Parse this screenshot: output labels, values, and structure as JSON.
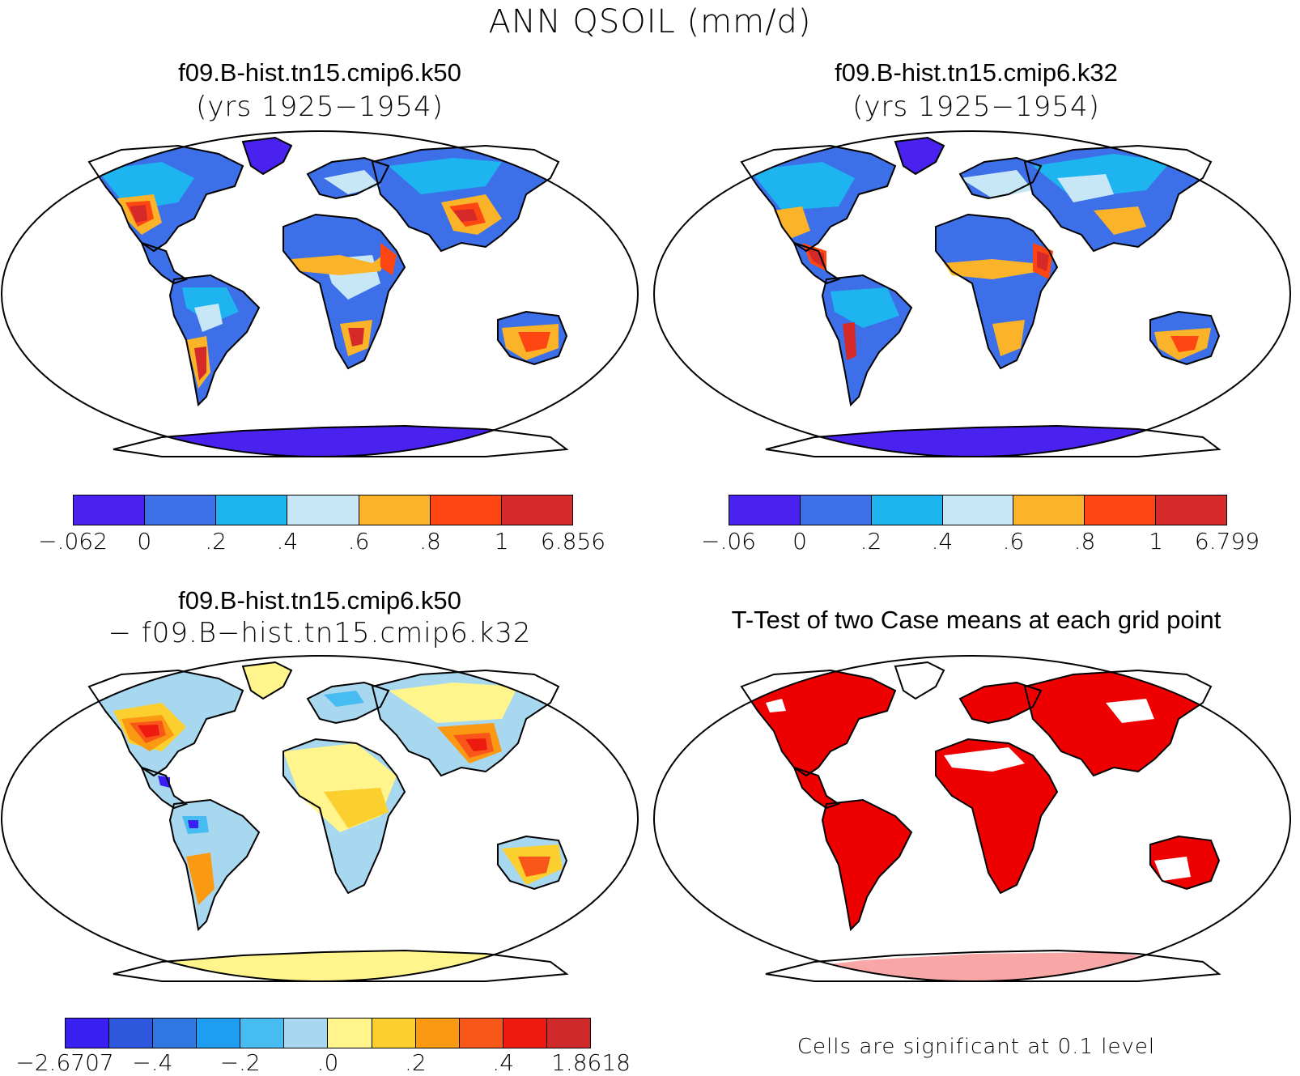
{
  "figure": {
    "title": "ANN QSOIL (mm/d)"
  },
  "panels": [
    {
      "title": "f09.B-hist.tn15.cmip6.k50",
      "subtitle": "(yrs 1925−1954)",
      "colorbar": {
        "colors": [
          "#4a22f0",
          "#3c6fe8",
          "#1db4f0",
          "#c7e7f7",
          "#fbb32a",
          "#fd4612",
          "#d62a2a"
        ],
        "labels": [
          "−.062",
          "0",
          ".2",
          ".4",
          ".6",
          ".8",
          "1",
          "6.856"
        ]
      }
    },
    {
      "title": "f09.B-hist.tn15.cmip6.k32",
      "subtitle": "(yrs 1925−1954)",
      "colorbar": {
        "colors": [
          "#4a22f0",
          "#3c6fe8",
          "#1db4f0",
          "#c7e7f7",
          "#fbb32a",
          "#fd4612",
          "#d62a2a"
        ],
        "labels": [
          "−.06",
          "0",
          ".2",
          ".4",
          ".6",
          ".8",
          "1",
          "6.799"
        ]
      }
    },
    {
      "title": "f09.B-hist.tn15.cmip6.k50",
      "subtitle": "− f09.B−hist.tn15.cmip6.k32",
      "colorbar": {
        "colors": [
          "#3a1ff2",
          "#2d57dc",
          "#2f78e2",
          "#1e9ef0",
          "#46bcf0",
          "#a8d8f0",
          "#fff58c",
          "#fbd02e",
          "#fb9a12",
          "#f9561a",
          "#ee1a10",
          "#d02a2a"
        ],
        "labels": [
          "−2.6707",
          "−.4",
          "−.2",
          ".0",
          ".2",
          ".4",
          "1.8618"
        ]
      }
    },
    {
      "title": "T-Test of two Case means at each grid point",
      "note": "Cells are significant at 0.1 level",
      "significant_color": "#ee0000"
    }
  ]
}
